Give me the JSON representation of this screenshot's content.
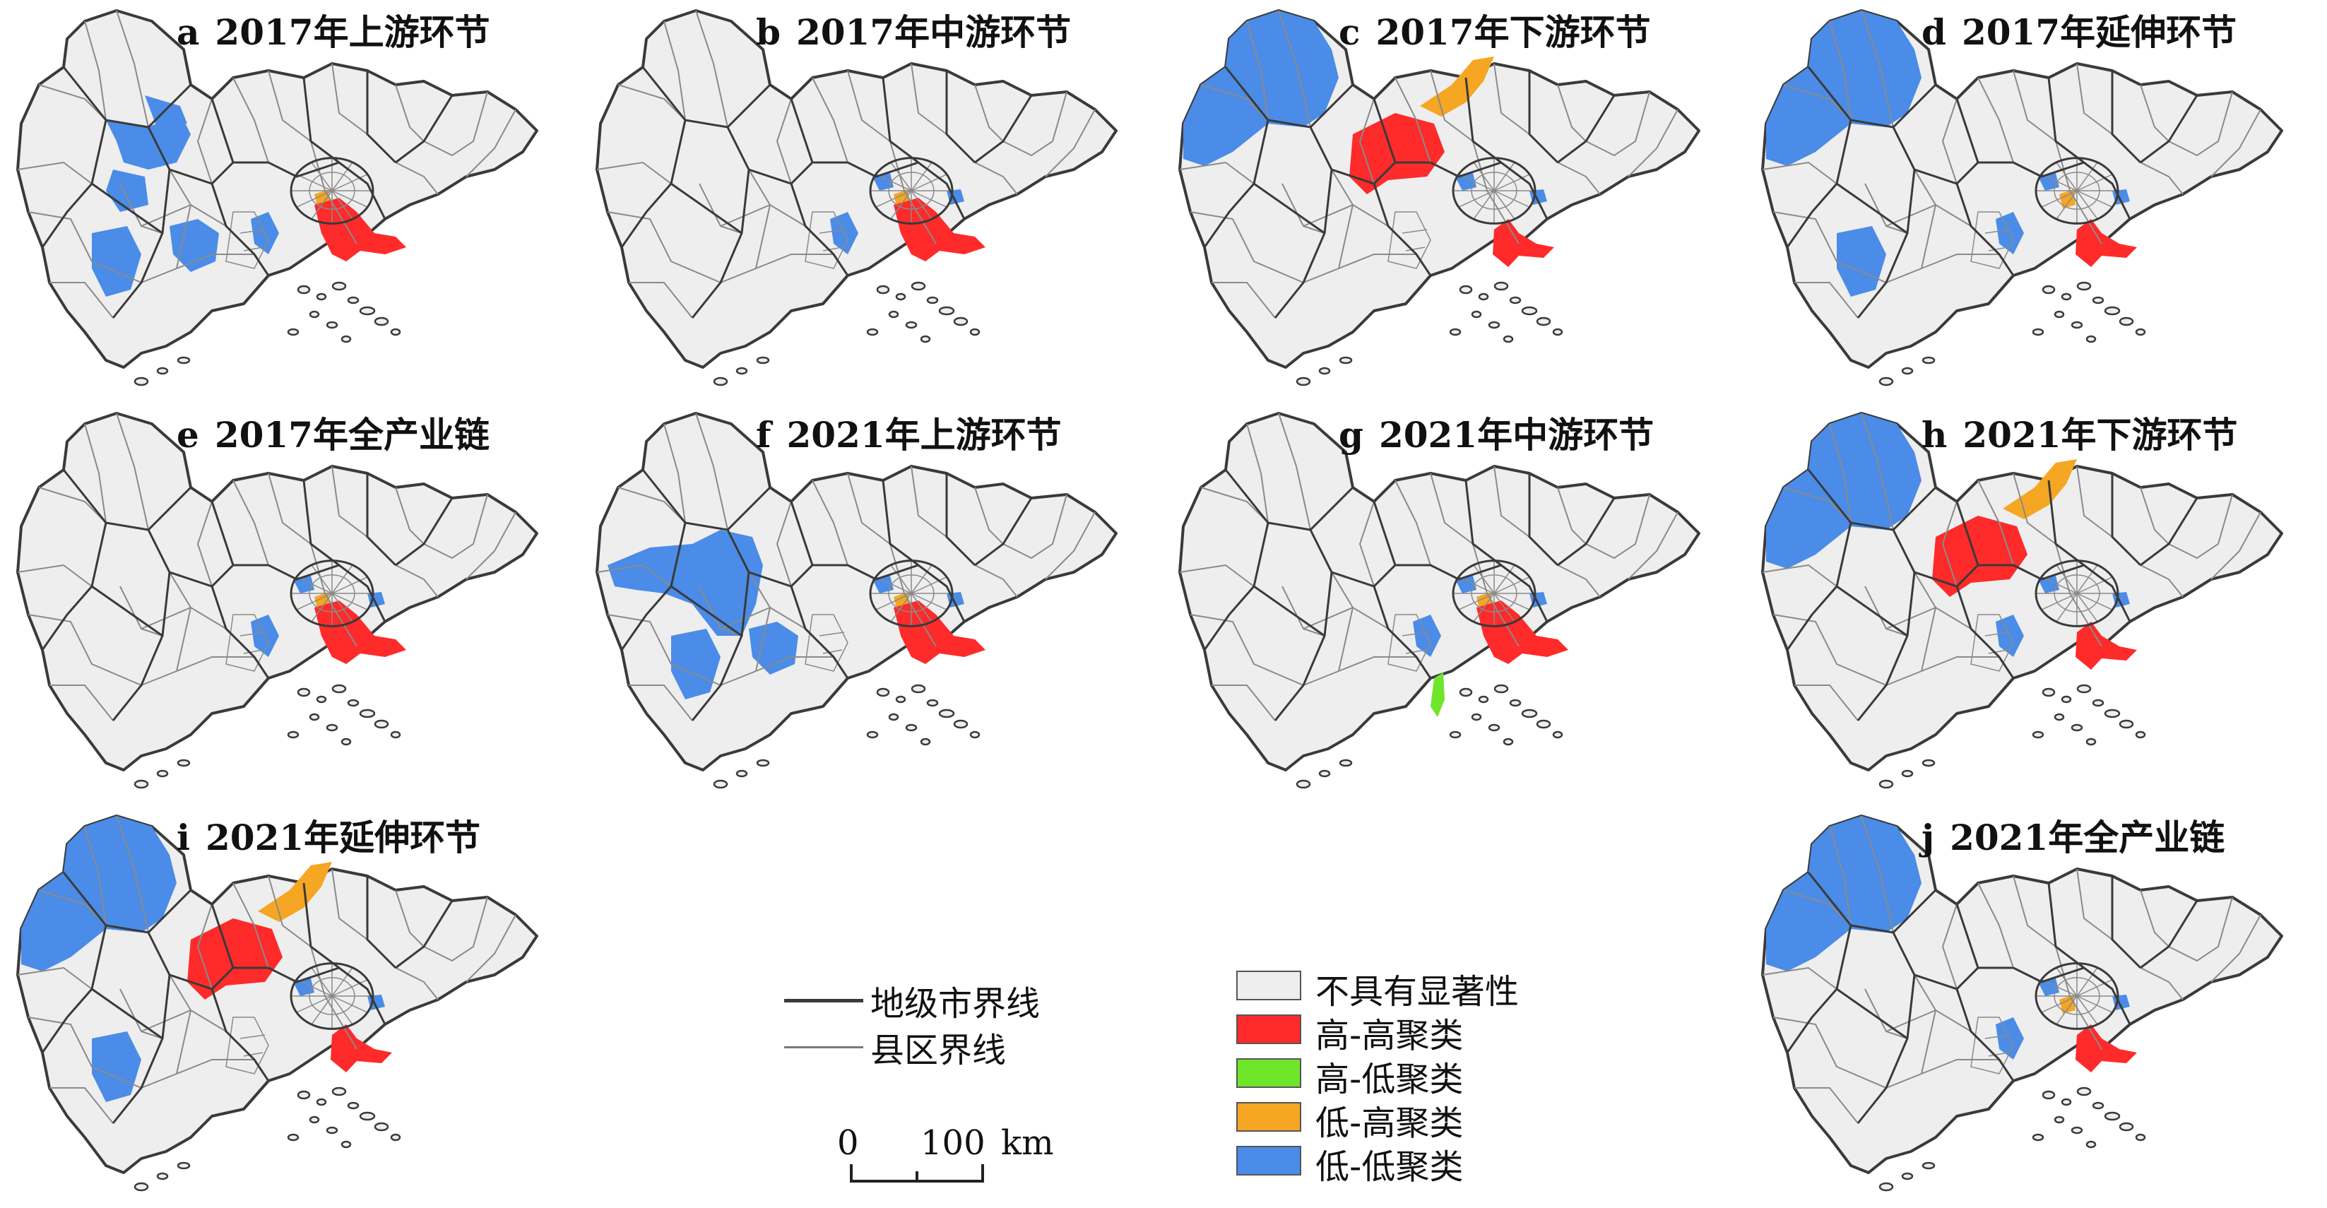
{
  "colors": {
    "not_significant": "#eeeeee",
    "high_high": "#ff2a2a",
    "high_low": "#6ee62a",
    "low_high": "#f5a623",
    "low_low": "#4a8ce8",
    "prefecture_boundary": "#3a3a3a",
    "county_boundary": "#8a8a8a"
  },
  "panels": [
    {
      "id": "a",
      "letter": "a",
      "title": "2017年上游环节",
      "high_high": [
        "shenzhen"
      ],
      "low_high": [
        "dongguan-small"
      ],
      "high_low": [],
      "low_low": [
        "west-a",
        "zhaoqing-south",
        "jiangmen-west",
        "jiangmen-mid",
        "zhongshan-small"
      ]
    },
    {
      "id": "b",
      "letter": "b",
      "title": "2017年中游环节",
      "high_high": [
        "shenzhen"
      ],
      "low_high": [
        "dongguan-small"
      ],
      "high_low": [],
      "low_low": [
        "zhongshan-small",
        "guangzhou-bits"
      ]
    },
    {
      "id": "c",
      "letter": "c",
      "title": "2017年下游环节",
      "high_high": [
        "qingyuan-south",
        "shenzhen-narrow"
      ],
      "low_high": [
        "shaoguan-strip"
      ],
      "high_low": [],
      "low_low": [
        "northwest-big",
        "guangzhou-bits"
      ]
    },
    {
      "id": "d",
      "letter": "d",
      "title": "2017年延伸环节",
      "high_high": [
        "shenzhen-narrow"
      ],
      "low_high": [
        "dongguan-small"
      ],
      "high_low": [],
      "low_low": [
        "northwest-big",
        "jiangmen-west",
        "zhongshan-small",
        "guangzhou-bits"
      ]
    },
    {
      "id": "e",
      "letter": "e",
      "title": "2017年全产业链",
      "high_high": [
        "shenzhen"
      ],
      "low_high": [
        "dongguan-small"
      ],
      "high_low": [],
      "low_low": [
        "guangzhou-bits",
        "zhongshan-small"
      ]
    },
    {
      "id": "f",
      "letter": "f",
      "title": "2021年上游环节",
      "high_high": [
        "shenzhen"
      ],
      "low_high": [
        "dongguan-small"
      ],
      "high_low": [],
      "low_low": [
        "west-f",
        "jiangmen-west",
        "jiangmen-mid",
        "guangzhou-bits"
      ]
    },
    {
      "id": "g",
      "letter": "g",
      "title": "2021年中游环节",
      "high_high": [
        "shenzhen"
      ],
      "low_high": [
        "dongguan-small"
      ],
      "high_low": [
        "zhuhai-strip"
      ],
      "low_low": [
        "zhongshan-small",
        "guangzhou-bits"
      ]
    },
    {
      "id": "h",
      "letter": "h",
      "title": "2021年下游环节",
      "high_high": [
        "qingyuan-south",
        "shenzhen-narrow"
      ],
      "low_high": [
        "shaoguan-strip"
      ],
      "high_low": [],
      "low_low": [
        "northwest-big",
        "guangzhou-bits",
        "zhongshan-small"
      ]
    },
    {
      "id": "i",
      "letter": "i",
      "title": "2021年延伸环节",
      "high_high": [
        "qingyuan-south",
        "shenzhen-narrow"
      ],
      "low_high": [
        "shaoguan-strip"
      ],
      "high_low": [],
      "low_low": [
        "northwest-big",
        "jiangmen-west",
        "guangzhou-bits"
      ]
    },
    {
      "id": "j",
      "letter": "j",
      "title": "2021年全产业链",
      "high_high": [
        "shenzhen-narrow"
      ],
      "low_high": [
        "dongguan-small"
      ],
      "high_low": [],
      "low_low": [
        "northwest-big",
        "guangzhou-bits",
        "zhongshan-small"
      ]
    }
  ],
  "boundary_legend": [
    {
      "label": "地级市界线",
      "kind": "prefecture"
    },
    {
      "label": "县区界线",
      "kind": "county"
    }
  ],
  "scale_bar": {
    "zero": "0",
    "value": "100",
    "unit": "km"
  },
  "class_legend": [
    {
      "label": "不具有显著性",
      "color_key": "not_significant"
    },
    {
      "label": "高-高聚类",
      "color_key": "high_high"
    },
    {
      "label": "高-低聚类",
      "color_key": "high_low"
    },
    {
      "label": "低-高聚类",
      "color_key": "low_high"
    },
    {
      "label": "低-低聚类",
      "color_key": "low_low"
    }
  ]
}
